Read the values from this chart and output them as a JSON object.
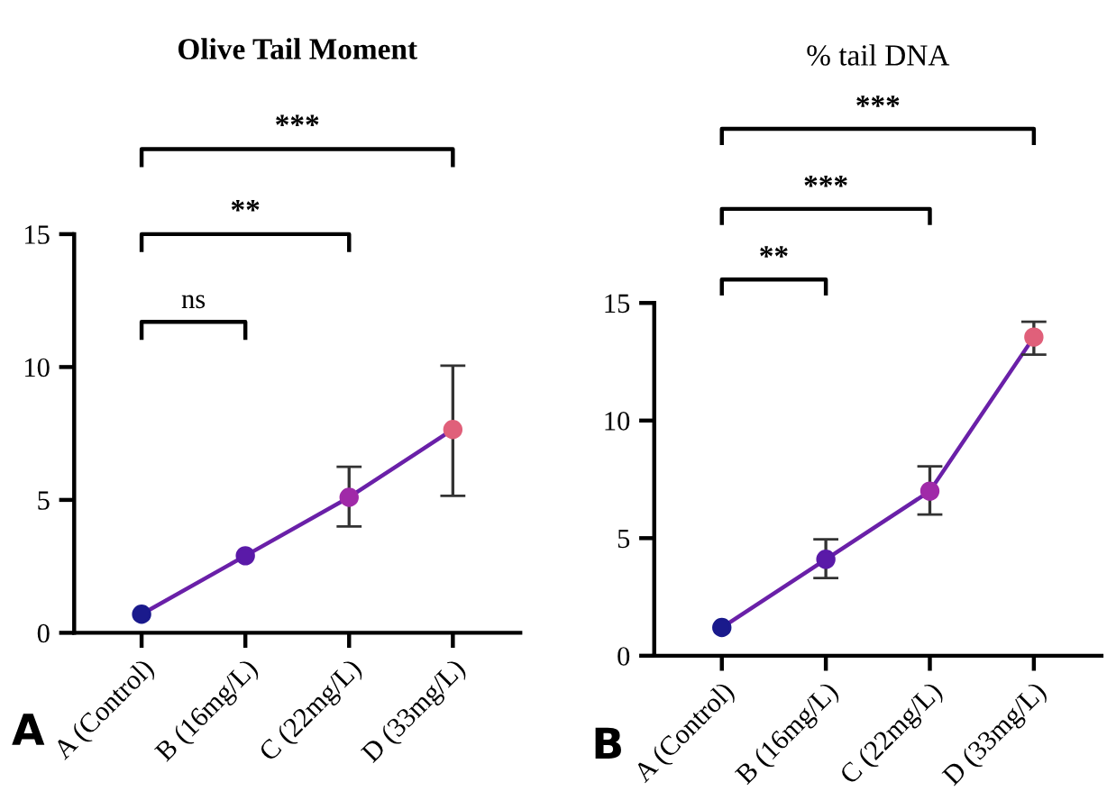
{
  "chart_data": [
    {
      "type": "line",
      "title": "Olive Tail Moment",
      "categories": [
        "A (Control)",
        "B (16mg/L)",
        "C (22mg/L)",
        "D (33mg/L)"
      ],
      "values": [
        0.7,
        2.9,
        5.1,
        7.65
      ],
      "errors": [
        null,
        null,
        [
          4.0,
          6.25
        ],
        [
          5.15,
          10.05
        ]
      ],
      "color": "#6a20a8",
      "colors": [
        "#1a1a8c",
        "#5a1aa8",
        "#a02aa8",
        "#e0607a"
      ],
      "ylim": [
        0,
        15
      ],
      "yticks": [
        0,
        5,
        10,
        15
      ],
      "marker": "circle",
      "grid": false,
      "legend": false,
      "annotations": [
        "ns",
        "**",
        "***",
        "A"
      ]
    },
    {
      "type": "line",
      "title": "% tail DNA",
      "categories": [
        "A (Control)",
        "B (16mg/L)",
        "C (22mg/L)",
        "D (33mg/L)"
      ],
      "values": [
        1.2,
        4.1,
        7.0,
        13.55
      ],
      "errors": [
        null,
        [
          3.3,
          4.95
        ],
        [
          6.0,
          8.05
        ],
        [
          12.8,
          14.2
        ]
      ],
      "color": "#6a20a8",
      "colors": [
        "#1a1a8c",
        "#5a1aa8",
        "#a02aa8",
        "#e0607a"
      ],
      "ylim": [
        0,
        15
      ],
      "yticks": [
        0,
        5,
        10,
        15
      ],
      "marker": "circle",
      "grid": false,
      "legend": false,
      "annotations": [
        "**",
        "***",
        "***",
        "B"
      ]
    }
  ]
}
